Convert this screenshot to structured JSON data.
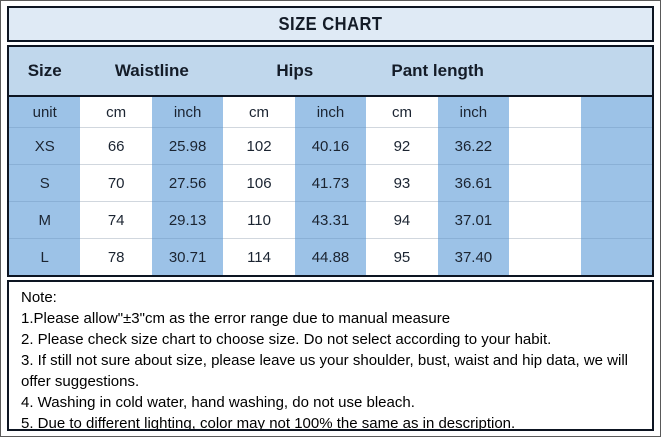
{
  "title": "SIZE CHART",
  "header": {
    "size": "Size",
    "waistline": "Waistline",
    "hips": "Hips",
    "pant_length": "Pant length"
  },
  "table": {
    "unit_row": [
      "unit",
      "cm",
      "inch",
      "cm",
      "inch",
      "cm",
      "inch",
      "",
      ""
    ],
    "rows": [
      {
        "size": "XS",
        "cells": [
          "66",
          "25.98",
          "102",
          "40.16",
          "92",
          "36.22"
        ]
      },
      {
        "size": "S",
        "cells": [
          "70",
          "27.56",
          "106",
          "41.73",
          "93",
          "36.61"
        ]
      },
      {
        "size": "M",
        "cells": [
          "74",
          "29.13",
          "110",
          "43.31",
          "94",
          "37.01"
        ]
      },
      {
        "size": "L",
        "cells": [
          "78",
          "30.71",
          "114",
          "44.88",
          "95",
          "37.40"
        ]
      }
    ]
  },
  "notes": {
    "heading": "Note:",
    "items": [
      "1.Please allow\"±3\"cm as the error range due to manual measure",
      "2. Please check size chart to choose size. Do not select according to your habit.",
      "3. If still not sure about size, please leave us your shoulder, bust, waist and hip data, we will offer suggestions.",
      "4. Washing in cold water, hand washing, do not use bleach.",
      "5. Due to different lighting, color may not 100% the same as in description."
    ]
  },
  "colors": {
    "title_background": "#dfeaf5",
    "header_background": "#c0d7ec",
    "column_blue": "#9cc2e7",
    "border_dark": "#0d1522",
    "text_dark": "#1b2431"
  }
}
